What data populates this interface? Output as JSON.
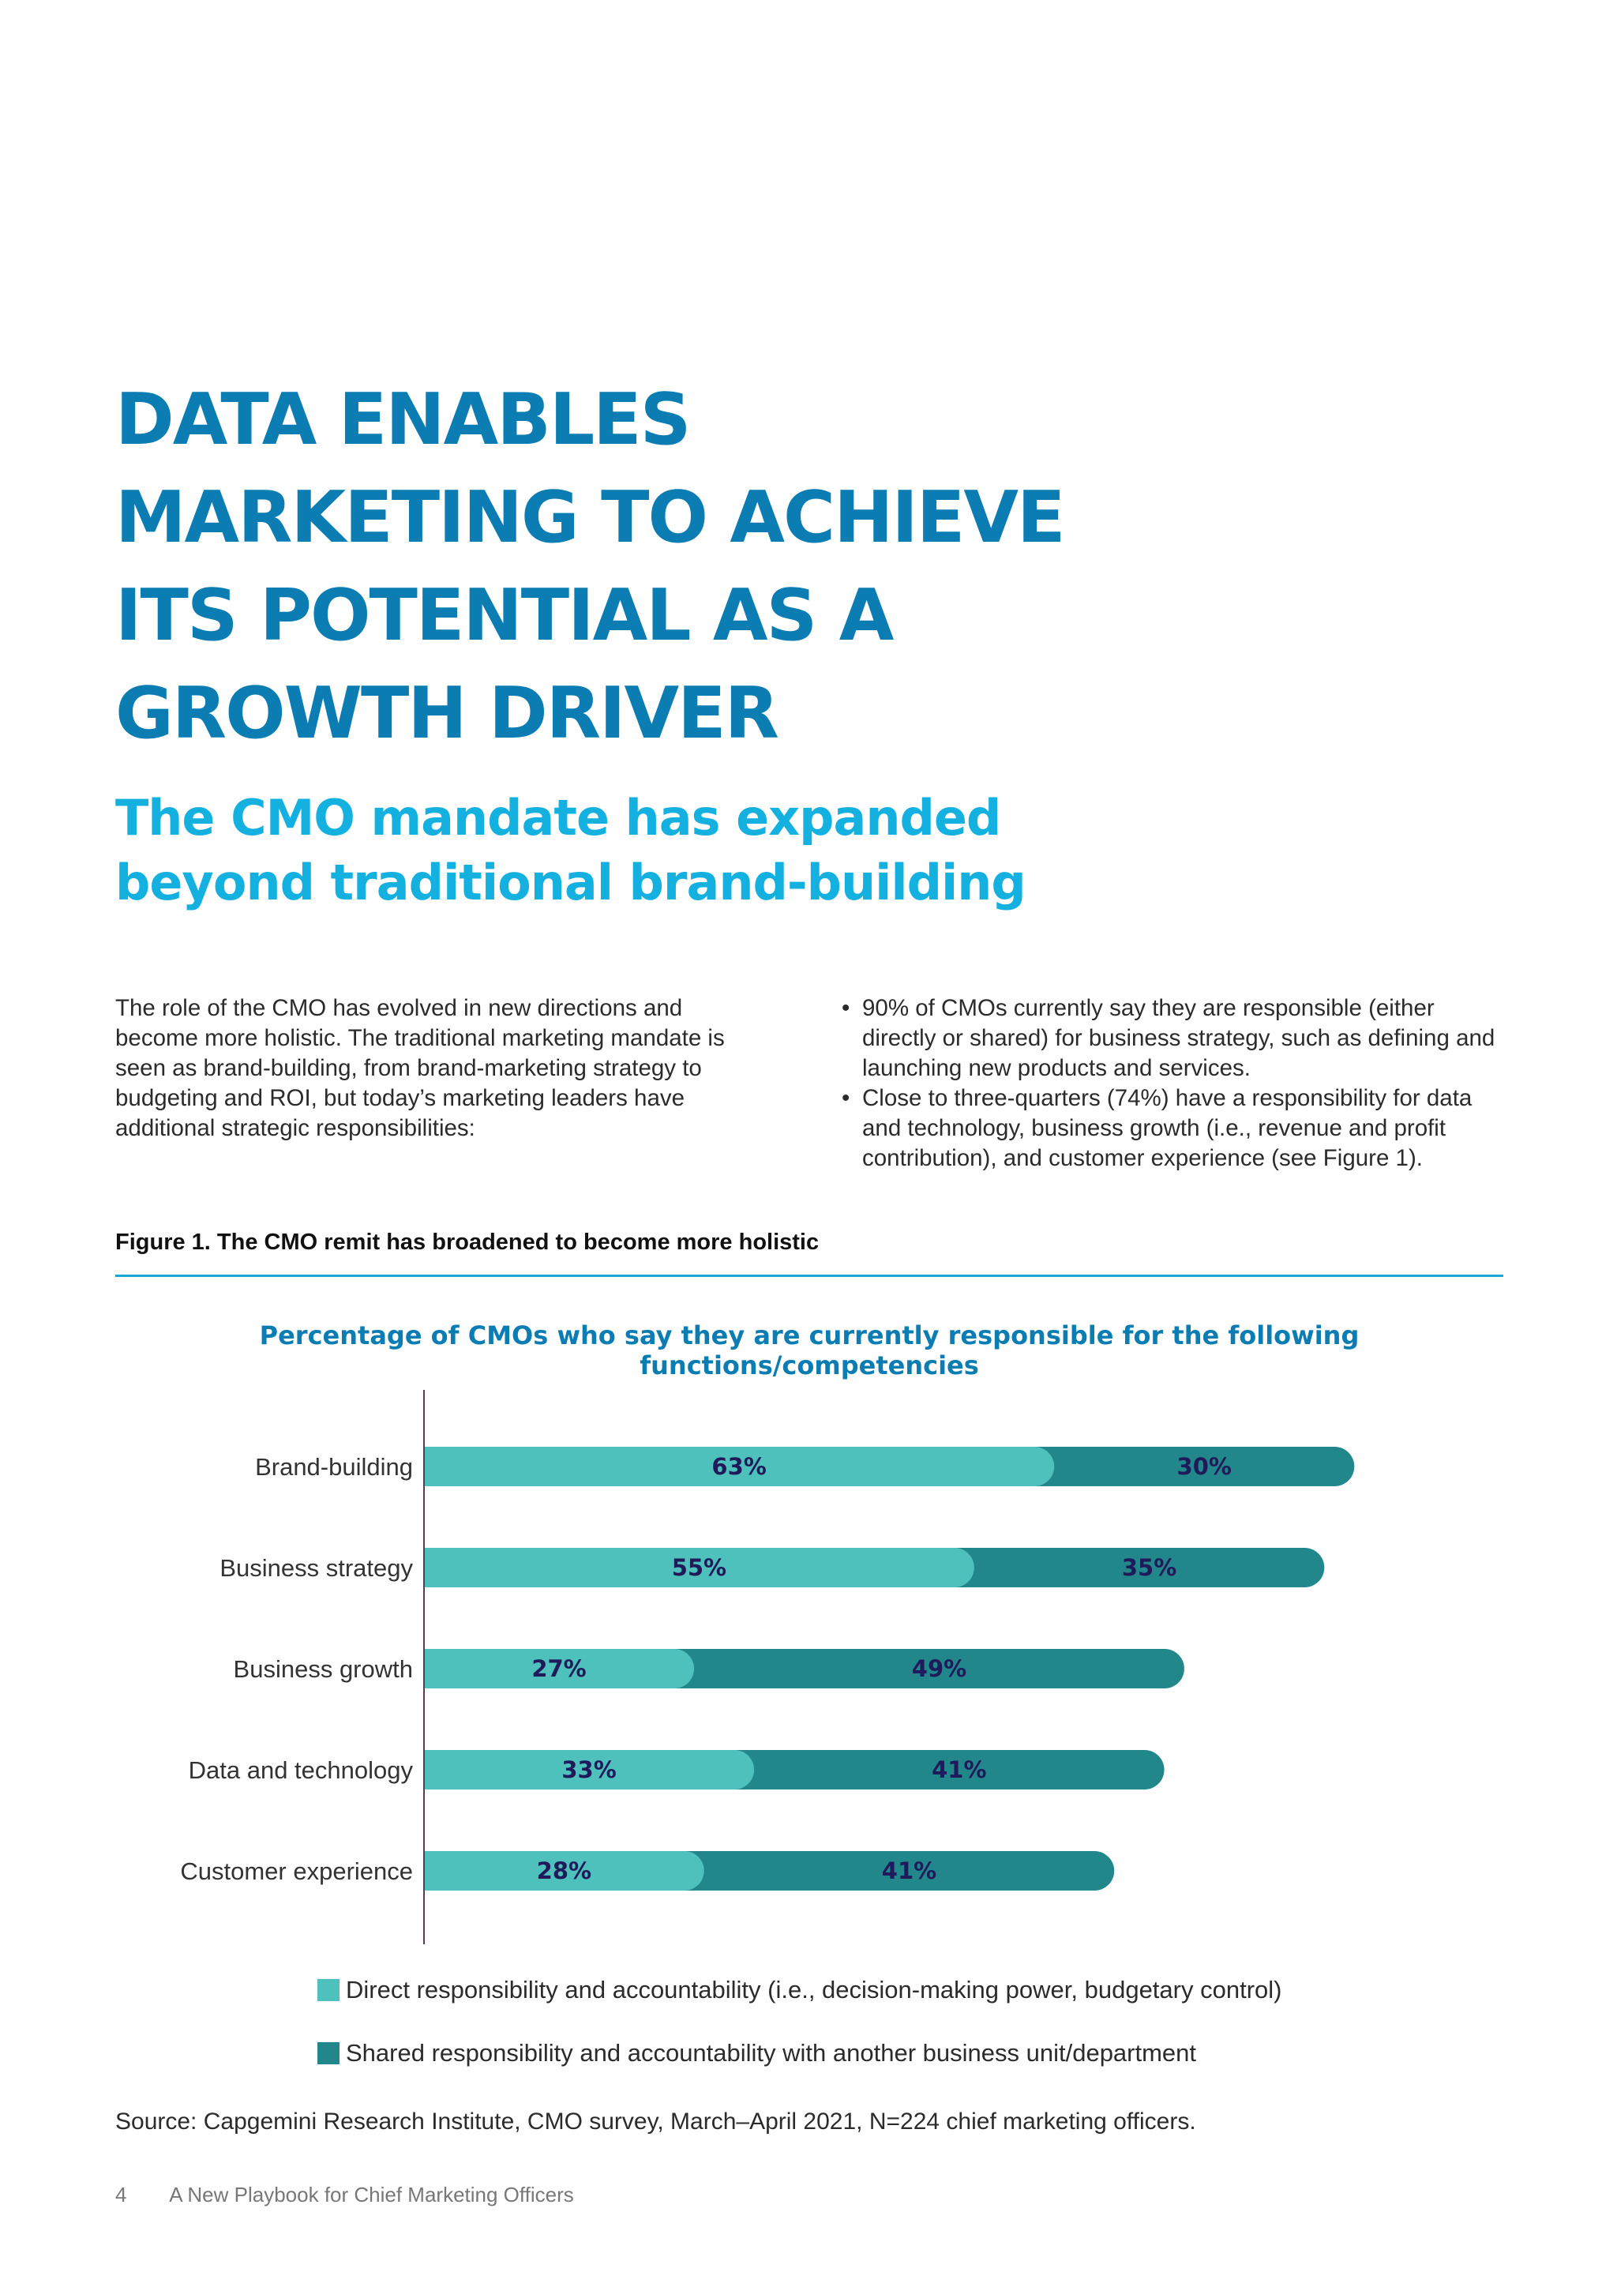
{
  "heading": {
    "lines": [
      "DATA ENABLES",
      "MARKETING TO ACHIEVE",
      "ITS POTENTIAL AS A",
      "GROWTH DRIVER"
    ]
  },
  "subheading": {
    "lines": [
      "The CMO mandate has expanded",
      "beyond traditional brand-building"
    ]
  },
  "intro": {
    "paragraph": "The role of the CMO has evolved in new directions and become more holistic. The traditional marketing mandate is seen as brand-building, from brand-marketing strategy to budgeting and ROI, but today’s marketing leaders have additional strategic responsibilities:",
    "bullets": [
      "90% of CMOs currently say they are responsible (either directly or shared) for business strategy, such as defining and launching new products and services.",
      "Close to three-quarters (74%) have a responsibility for data and technology, business growth (i.e., revenue and profit contribution), and customer experience (see Figure 1)."
    ]
  },
  "figure": {
    "caption": "Figure 1. The CMO remit has broadened to become more holistic",
    "source": "Source: Capgemini Research Institute, CMO survey, March–April 2021, N=224 chief marketing officers."
  },
  "footer": {
    "page_number": "4",
    "publication": "A New Playbook for  Chief Marketing Officers"
  },
  "chart_data": {
    "type": "bar",
    "orientation": "horizontal",
    "stacked": true,
    "title": "Percentage of CMOs who say they are currently responsible for the following functions/competencies",
    "categories": [
      "Brand-building",
      "Business strategy",
      "Business growth",
      "Data and technology",
      "Customer experience"
    ],
    "series": [
      {
        "name": "Direct responsibility and accountability (i.e., decision-making power, budgetary control)",
        "values": [
          63,
          55,
          27,
          33,
          28
        ],
        "color": "#4ec1bc"
      },
      {
        "name": "Shared responsibility and accountability with another business unit/department",
        "values": [
          30,
          35,
          49,
          41,
          41
        ],
        "color": "#21878b"
      }
    ],
    "value_suffix": "%",
    "xlim": [
      0,
      100
    ],
    "grid": false,
    "legend_position": "bottom"
  }
}
